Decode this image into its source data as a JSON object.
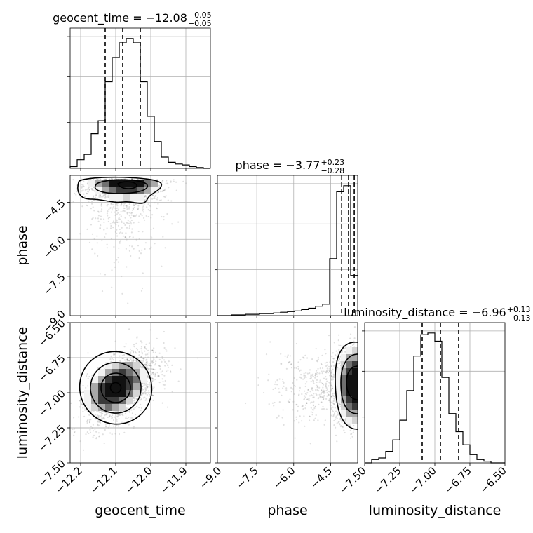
{
  "chart_data": {
    "type": "corner",
    "parameters": [
      "geocent_time",
      "phase",
      "luminosity_distance"
    ],
    "titles": [
      {
        "parameter": "geocent_time",
        "prefix": "geocent_time = ",
        "median": "−12.08",
        "plus": "+0.05",
        "minus": "−0.05"
      },
      {
        "parameter": "phase",
        "prefix": "phase = ",
        "median": "−3.77",
        "plus": "+0.23",
        "minus": "−0.28"
      },
      {
        "parameter": "luminosity_distance",
        "prefix": "luminosity_distance = ",
        "median": "−6.96",
        "plus": "+0.13",
        "minus": "−0.13"
      }
    ],
    "axis_labels": [
      "geocent_time",
      "phase",
      "luminosity_distance"
    ],
    "ranges": [
      [
        -12.23,
        -11.83
      ],
      [
        -9.1,
        -3.4
      ],
      [
        -7.5,
        -6.5
      ]
    ],
    "ticks": [
      {
        "values": [
          -12.2,
          -12.1,
          -12.0,
          -11.9
        ],
        "labels": [
          "−12.2",
          "−12.1",
          "−12.0",
          "−11.9"
        ]
      },
      {
        "values": [
          -9.0,
          -7.5,
          -6.0,
          -4.5
        ],
        "labels": [
          "−9.0",
          "−7.5",
          "−6.0",
          "−4.5"
        ]
      },
      {
        "values": [
          -7.5,
          -7.25,
          -7.0,
          -6.75,
          -6.5
        ],
        "labels": [
          "−7.50",
          "−7.25",
          "−7.00",
          "−6.75",
          "−6.50"
        ]
      }
    ],
    "quantiles": [
      [
        -12.13,
        -12.08,
        -12.03
      ],
      [
        -4.05,
        -3.77,
        -3.54
      ],
      [
        -7.09,
        -6.96,
        -6.83
      ]
    ],
    "histograms": [
      {
        "bin_edges_start": -12.23,
        "bin_width": 0.02,
        "counts": [
          2,
          10,
          16,
          40,
          55,
          100,
          128,
          145,
          150,
          145,
          100,
          60,
          31,
          13,
          7,
          5,
          4,
          2,
          1,
          0
        ]
      },
      {
        "bin_edges_start": -9.1,
        "bin_width": 0.285,
        "counts": [
          0,
          0,
          1,
          1,
          2,
          2,
          3,
          3,
          4,
          5,
          6,
          7,
          9,
          11,
          14,
          17,
          85,
          185,
          194,
          60
        ]
      },
      {
        "bin_edges_start": -7.5,
        "bin_width": 0.05,
        "counts": [
          0,
          2,
          3,
          7,
          14,
          26,
          44,
          65,
          78,
          79,
          74,
          52,
          30,
          19,
          11,
          5,
          2,
          1,
          0,
          0
        ]
      }
    ],
    "grid": true
  }
}
